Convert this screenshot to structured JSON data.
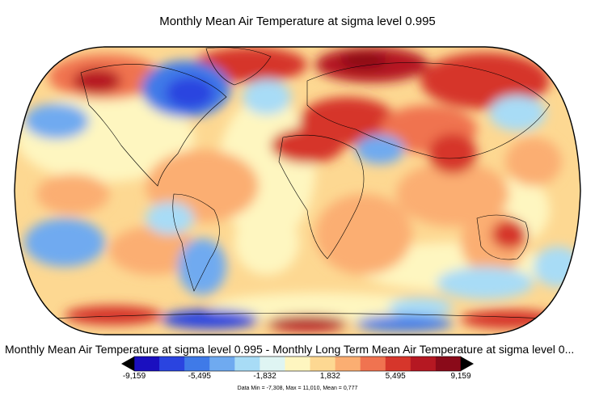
{
  "title": "Monthly Mean Air Temperature at sigma level 0.995",
  "subtitle": "Monthly Mean Air Temperature at sigma level 0.995 - Monthly Long Term Mean Air Temperature at sigma level 0...",
  "colorbar": {
    "colors": [
      "#1a0fbf",
      "#2a44e0",
      "#3f7ae8",
      "#6faaf0",
      "#a8dcf6",
      "#dff5f3",
      "#fef6c0",
      "#fdd892",
      "#fbae72",
      "#f07350",
      "#d6362b",
      "#b51822",
      "#8a0a19"
    ],
    "ticks": [
      {
        "label": "-9,159",
        "value": -9.159
      },
      {
        "label": "-5,495",
        "value": -5.495
      },
      {
        "label": "-1,832",
        "value": -1.832
      },
      {
        "label": "1,832",
        "value": 1.832
      },
      {
        "label": "5,495",
        "value": 5.495
      },
      {
        "label": "9,159",
        "value": 9.159
      }
    ],
    "range": [
      -9.159,
      9.159
    ]
  },
  "stats_text": "Data Min = -7,308, Max = 11,010, Mean = 0,777"
}
